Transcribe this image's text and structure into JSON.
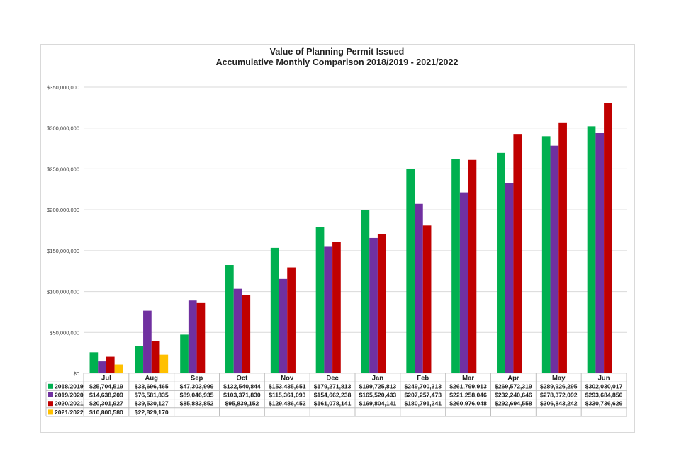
{
  "chart_data": {
    "type": "bar",
    "title": "Value of Planning Permit Issued",
    "subtitle": "Accumulative Monthly Comparison 2018/2019 - 2021/2022",
    "xlabel": "",
    "ylabel": "",
    "ylim": [
      0,
      350000000
    ],
    "yticks": [
      0,
      50000000,
      100000000,
      150000000,
      200000000,
      250000000,
      300000000,
      350000000
    ],
    "ytick_labels": [
      "$0",
      "$50,000,000",
      "$100,000,000",
      "$150,000,000",
      "$200,000,000",
      "$250,000,000",
      "$300,000,000",
      "$350,000,000"
    ],
    "grid": true,
    "legend": "data table below chart",
    "categories": [
      "Jul",
      "Aug",
      "Sep",
      "Oct",
      "Nov",
      "Dec",
      "Jan",
      "Feb",
      "Mar",
      "Apr",
      "May",
      "Jun"
    ],
    "series": [
      {
        "name": "2018/2019",
        "color": "#00b050",
        "values": [
          25704519,
          33696465,
          47303999,
          132540844,
          153435651,
          179271813,
          199725813,
          249700313,
          261799913,
          269572319,
          289926295,
          302030017
        ],
        "labels": [
          "$25,704,519",
          "$33,696,465",
          "$47,303,999",
          "$132,540,844",
          "$153,435,651",
          "$179,271,813",
          "$199,725,813",
          "$249,700,313",
          "$261,799,913",
          "$269,572,319",
          "$289,926,295",
          "$302,030,017"
        ]
      },
      {
        "name": "2019/2020",
        "color": "#7030a0",
        "values": [
          14638209,
          76581835,
          89046935,
          103371830,
          115361093,
          154662238,
          165520433,
          207257473,
          221258046,
          232240646,
          278372092,
          293684850
        ],
        "labels": [
          "$14,638,209",
          "$76,581,835",
          "$89,046,935",
          "$103,371,830",
          "$115,361,093",
          "$154,662,238",
          "$165,520,433",
          "$207,257,473",
          "$221,258,046",
          "$232,240,646",
          "$278,372,092",
          "$293,684,850"
        ]
      },
      {
        "name": "2020/2021",
        "color": "#c00000",
        "values": [
          20301927,
          39530127,
          85883852,
          95839152,
          129486452,
          161078141,
          169804141,
          180791241,
          260976048,
          292694558,
          306843242,
          330736629
        ],
        "labels": [
          "$20,301,927",
          "$39,530,127",
          "$85,883,852",
          "$95,839,152",
          "$129,486,452",
          "$161,078,141",
          "$169,804,141",
          "$180,791,241",
          "$260,976,048",
          "$292,694,558",
          "$306,843,242",
          "$330,736,629"
        ]
      },
      {
        "name": "2021/2022",
        "color": "#ffc000",
        "values": [
          10800580,
          22829170,
          null,
          null,
          null,
          null,
          null,
          null,
          null,
          null,
          null,
          null
        ],
        "labels": [
          "$10,800,580",
          "$22,829,170",
          "",
          "",
          "",
          "",
          "",
          "",
          "",
          "",
          "",
          ""
        ]
      }
    ]
  }
}
